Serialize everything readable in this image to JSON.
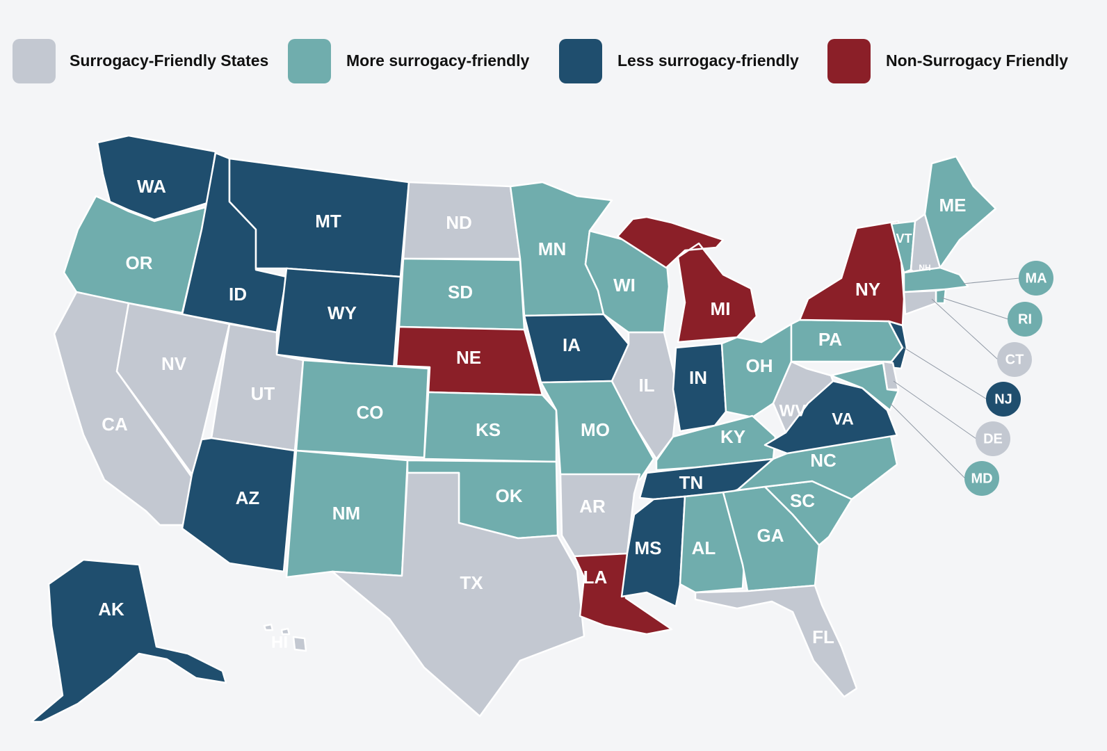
{
  "colors": {
    "friendly": "#c3c8d1",
    "more": "#70adad",
    "less": "#1f4e6e",
    "non": "#8b1f28"
  },
  "legend": [
    {
      "key": "friendly",
      "label": "Surrogacy-Friendly States"
    },
    {
      "key": "more",
      "label": "More surrogacy-friendly"
    },
    {
      "key": "less",
      "label": "Less surrogacy-friendly"
    },
    {
      "key": "non",
      "label": "Non-Surrogacy Friendly"
    }
  ],
  "states": [
    {
      "abbr": "WA",
      "category": "less"
    },
    {
      "abbr": "OR",
      "category": "more"
    },
    {
      "abbr": "CA",
      "category": "friendly"
    },
    {
      "abbr": "ID",
      "category": "less"
    },
    {
      "abbr": "NV",
      "category": "friendly"
    },
    {
      "abbr": "MT",
      "category": "less"
    },
    {
      "abbr": "WY",
      "category": "less"
    },
    {
      "abbr": "UT",
      "category": "friendly"
    },
    {
      "abbr": "AZ",
      "category": "less"
    },
    {
      "abbr": "CO",
      "category": "more"
    },
    {
      "abbr": "NM",
      "category": "more"
    },
    {
      "abbr": "ND",
      "category": "friendly"
    },
    {
      "abbr": "SD",
      "category": "more"
    },
    {
      "abbr": "NE",
      "category": "non"
    },
    {
      "abbr": "KS",
      "category": "more"
    },
    {
      "abbr": "OK",
      "category": "more"
    },
    {
      "abbr": "TX",
      "category": "friendly"
    },
    {
      "abbr": "MN",
      "category": "more"
    },
    {
      "abbr": "IA",
      "category": "less"
    },
    {
      "abbr": "MO",
      "category": "more"
    },
    {
      "abbr": "AR",
      "category": "friendly"
    },
    {
      "abbr": "LA",
      "category": "non"
    },
    {
      "abbr": "WI",
      "category": "more"
    },
    {
      "abbr": "IL",
      "category": "friendly"
    },
    {
      "abbr": "MI",
      "category": "non"
    },
    {
      "abbr": "IN",
      "category": "less"
    },
    {
      "abbr": "OH",
      "category": "more"
    },
    {
      "abbr": "KY",
      "category": "more"
    },
    {
      "abbr": "TN",
      "category": "less"
    },
    {
      "abbr": "MS",
      "category": "less"
    },
    {
      "abbr": "AL",
      "category": "more"
    },
    {
      "abbr": "GA",
      "category": "more"
    },
    {
      "abbr": "FL",
      "category": "friendly"
    },
    {
      "abbr": "SC",
      "category": "more"
    },
    {
      "abbr": "NC",
      "category": "more"
    },
    {
      "abbr": "VA",
      "category": "less"
    },
    {
      "abbr": "WV",
      "category": "friendly"
    },
    {
      "abbr": "PA",
      "category": "more"
    },
    {
      "abbr": "NY",
      "category": "non"
    },
    {
      "abbr": "VT",
      "category": "more"
    },
    {
      "abbr": "NH",
      "category": "friendly"
    },
    {
      "abbr": "ME",
      "category": "more"
    },
    {
      "abbr": "MA",
      "category": "more"
    },
    {
      "abbr": "RI",
      "category": "more"
    },
    {
      "abbr": "CT",
      "category": "friendly"
    },
    {
      "abbr": "NJ",
      "category": "less"
    },
    {
      "abbr": "DE",
      "category": "friendly"
    },
    {
      "abbr": "MD",
      "category": "more"
    },
    {
      "abbr": "AK",
      "category": "less"
    },
    {
      "abbr": "HI",
      "category": "friendly"
    }
  ]
}
